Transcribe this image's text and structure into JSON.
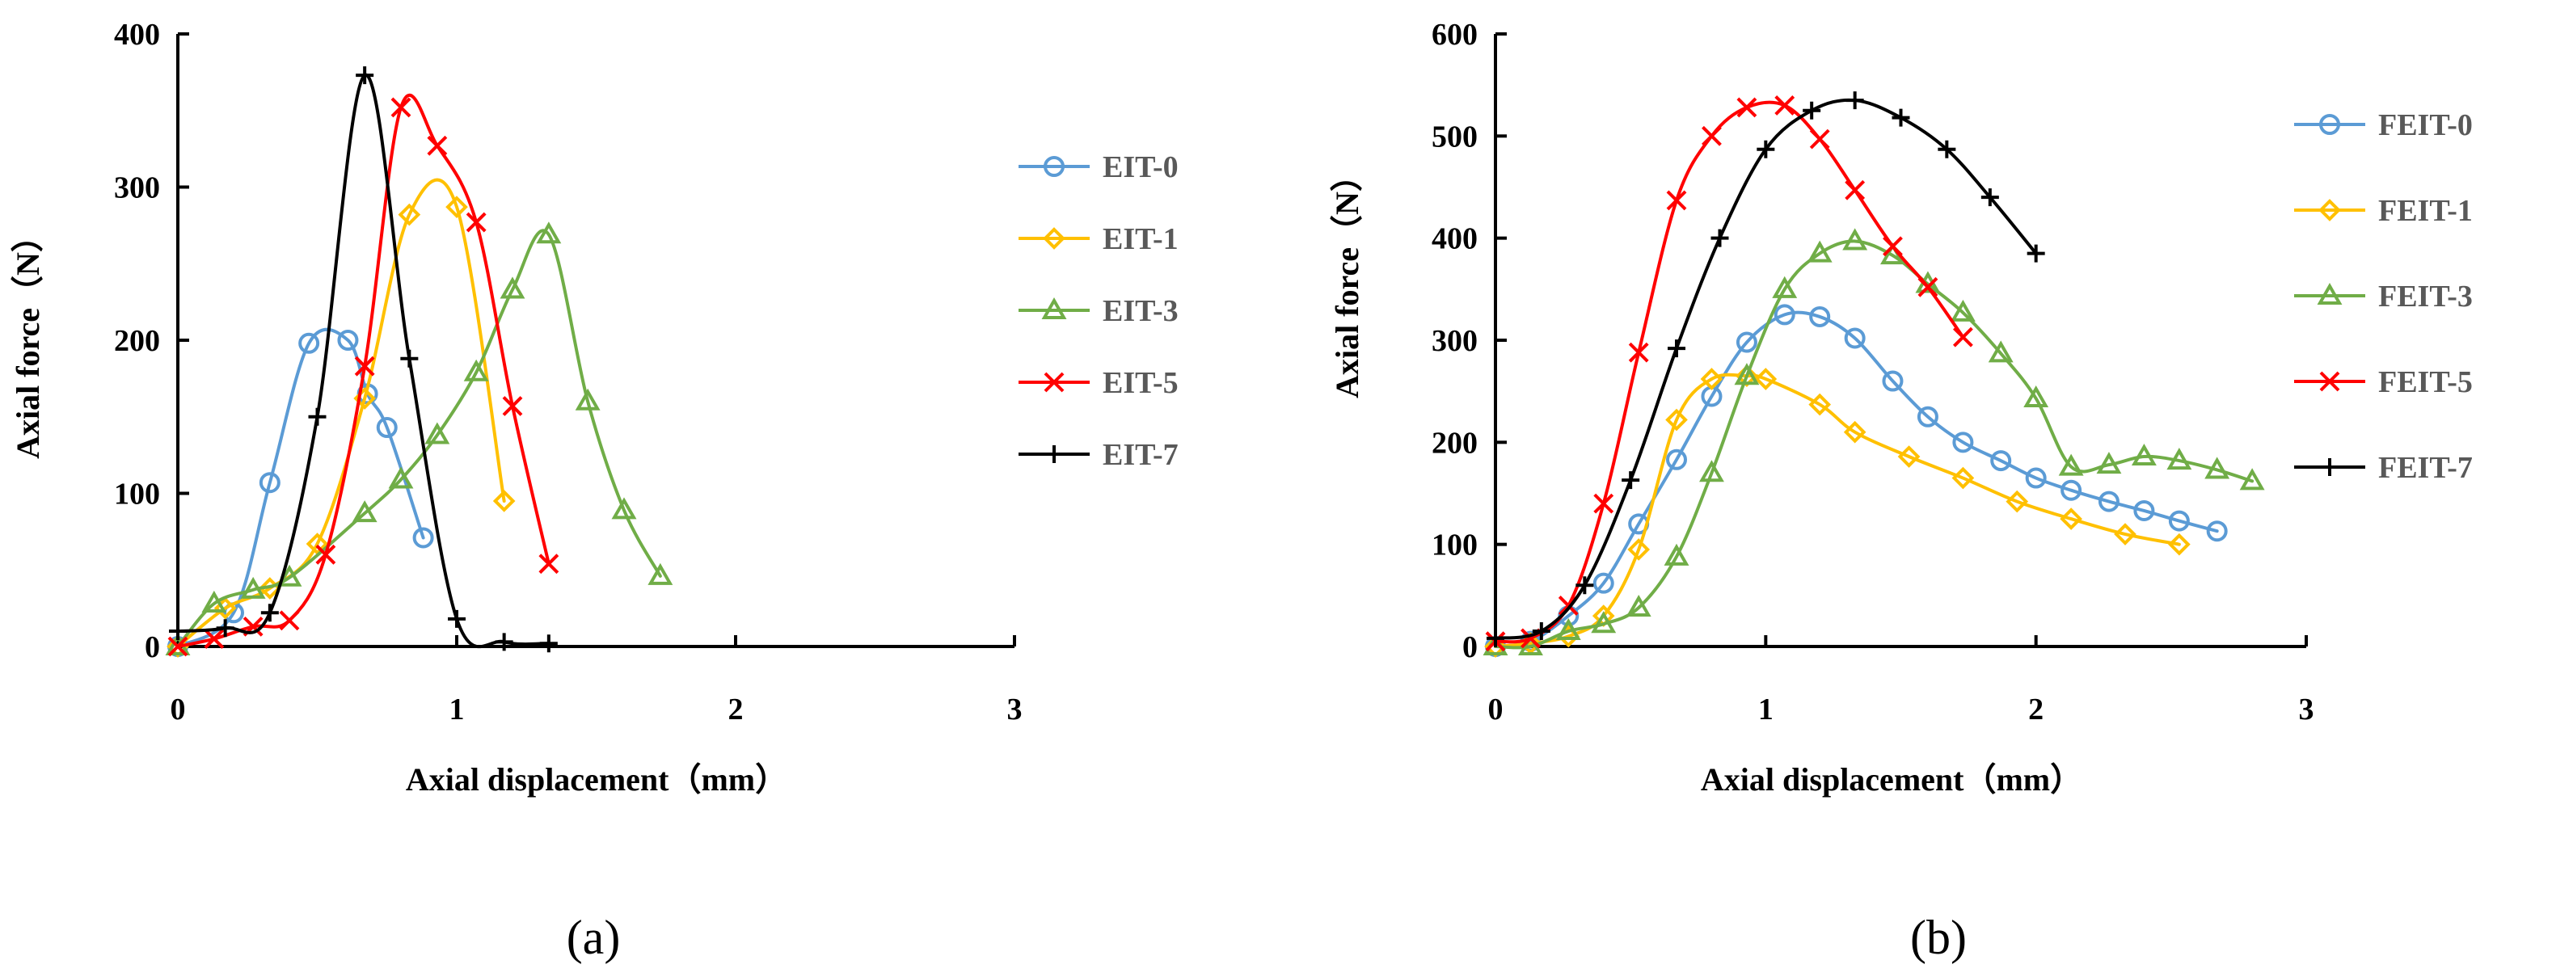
{
  "chart_data": [
    {
      "type": "line",
      "panel_label": "(a)",
      "xlabel": "Axial displacement（mm）",
      "ylabel": "Axial force（N）",
      "xlim": [
        0,
        3
      ],
      "ylim": [
        0,
        400
      ],
      "xticks": [
        0,
        1,
        2,
        3
      ],
      "yticks": [
        0,
        100,
        200,
        300,
        400
      ],
      "xtick_labels": [
        "0",
        "1",
        "2",
        "3"
      ],
      "ytick_labels": [
        "0",
        "100",
        "200",
        "300",
        "400"
      ],
      "grid": false,
      "legend_position": "right",
      "series": [
        {
          "name": "EIT-0",
          "color": "#5B9BD5",
          "marker": "circle",
          "points": [
            [
              0,
              0
            ],
            [
              0.2,
              22
            ],
            [
              0.33,
              107
            ],
            [
              0.47,
              198
            ],
            [
              0.61,
              200
            ],
            [
              0.68,
              165
            ],
            [
              0.75,
              143
            ],
            [
              0.88,
              71
            ]
          ]
        },
        {
          "name": "EIT-1",
          "color": "#FFC000",
          "marker": "diamond",
          "points": [
            [
              0,
              0
            ],
            [
              0.17,
              25
            ],
            [
              0.33,
              38
            ],
            [
              0.5,
              67
            ],
            [
              0.67,
              162
            ],
            [
              0.83,
              282
            ],
            [
              1.0,
              287
            ],
            [
              1.17,
              95
            ]
          ]
        },
        {
          "name": "EIT-3",
          "color": "#70AD47",
          "marker": "triangle",
          "points": [
            [
              0,
              0
            ],
            [
              0.13,
              28
            ],
            [
              0.27,
              37
            ],
            [
              0.4,
              45
            ],
            [
              0.67,
              87
            ],
            [
              0.8,
              109
            ],
            [
              0.93,
              138
            ],
            [
              1.07,
              179
            ],
            [
              1.2,
              233
            ],
            [
              1.33,
              269
            ],
            [
              1.47,
              160
            ],
            [
              1.6,
              89
            ],
            [
              1.73,
              46
            ]
          ]
        },
        {
          "name": "EIT-5",
          "color": "#FF0000",
          "marker": "x",
          "points": [
            [
              0,
              0
            ],
            [
              0.13,
              5
            ],
            [
              0.27,
              13
            ],
            [
              0.4,
              17
            ],
            [
              0.53,
              60
            ],
            [
              0.67,
              183
            ],
            [
              0.8,
              352
            ],
            [
              0.93,
              327
            ],
            [
              1.07,
              277
            ],
            [
              1.2,
              157
            ],
            [
              1.33,
              54
            ]
          ]
        },
        {
          "name": "EIT-7",
          "color": "#000000",
          "marker": "plus",
          "points": [
            [
              0,
              10
            ],
            [
              0.17,
              12
            ],
            [
              0.33,
              22
            ],
            [
              0.5,
              150
            ],
            [
              0.67,
              373
            ],
            [
              0.83,
              188
            ],
            [
              1.0,
              18
            ],
            [
              1.17,
              3
            ],
            [
              1.33,
              2
            ]
          ]
        }
      ]
    },
    {
      "type": "line",
      "panel_label": "(b)",
      "xlabel": "Axial displacement（mm）",
      "ylabel": "Axial force（N）",
      "xlim": [
        0,
        3
      ],
      "ylim": [
        0,
        600
      ],
      "xticks": [
        0,
        1,
        2,
        3
      ],
      "yticks": [
        0,
        100,
        200,
        300,
        400,
        500,
        600
      ],
      "xtick_labels": [
        "0",
        "1",
        "2",
        "3"
      ],
      "ytick_labels": [
        "0",
        "100",
        "200",
        "300",
        "400",
        "500",
        "600"
      ],
      "grid": false,
      "legend_position": "right",
      "series": [
        {
          "name": "FEIT-0",
          "color": "#5B9BD5",
          "marker": "circle",
          "points": [
            [
              0,
              0
            ],
            [
              0.13,
              5
            ],
            [
              0.27,
              30
            ],
            [
              0.4,
              62
            ],
            [
              0.53,
              120
            ],
            [
              0.67,
              183
            ],
            [
              0.8,
              245
            ],
            [
              0.93,
              298
            ],
            [
              1.07,
              325
            ],
            [
              1.2,
              323
            ],
            [
              1.33,
              302
            ],
            [
              1.47,
              260
            ],
            [
              1.6,
              225
            ],
            [
              1.73,
              200
            ],
            [
              1.87,
              182
            ],
            [
              2.0,
              165
            ],
            [
              2.13,
              153
            ],
            [
              2.27,
              142
            ],
            [
              2.4,
              133
            ],
            [
              2.53,
              123
            ],
            [
              2.67,
              113
            ]
          ]
        },
        {
          "name": "FEIT-1",
          "color": "#FFC000",
          "marker": "diamond",
          "points": [
            [
              0,
              0
            ],
            [
              0.13,
              3
            ],
            [
              0.27,
              10
            ],
            [
              0.4,
              30
            ],
            [
              0.53,
              95
            ],
            [
              0.67,
              222
            ],
            [
              0.8,
              262
            ],
            [
              0.93,
              265
            ],
            [
              1.0,
              262
            ],
            [
              1.2,
              237
            ],
            [
              1.33,
              210
            ],
            [
              1.53,
              186
            ],
            [
              1.73,
              165
            ],
            [
              1.93,
              142
            ],
            [
              2.13,
              125
            ],
            [
              2.33,
              110
            ],
            [
              2.53,
              100
            ]
          ]
        },
        {
          "name": "FEIT-3",
          "color": "#70AD47",
          "marker": "triangle",
          "points": [
            [
              0,
              0
            ],
            [
              0.13,
              0
            ],
            [
              0.27,
              15
            ],
            [
              0.4,
              22
            ],
            [
              0.53,
              38
            ],
            [
              0.67,
              88
            ],
            [
              0.8,
              170
            ],
            [
              0.93,
              265
            ],
            [
              1.07,
              350
            ],
            [
              1.2,
              385
            ],
            [
              1.33,
              397
            ],
            [
              1.47,
              383
            ],
            [
              1.6,
              355
            ],
            [
              1.73,
              327
            ],
            [
              1.87,
              287
            ],
            [
              2.0,
              243
            ],
            [
              2.13,
              176
            ],
            [
              2.27,
              178
            ],
            [
              2.4,
              186
            ],
            [
              2.53,
              182
            ],
            [
              2.67,
              173
            ],
            [
              2.8,
              162
            ]
          ]
        },
        {
          "name": "FEIT-5",
          "color": "#FF0000",
          "marker": "x",
          "points": [
            [
              0,
              5
            ],
            [
              0.13,
              8
            ],
            [
              0.27,
              40
            ],
            [
              0.4,
              140
            ],
            [
              0.53,
              288
            ],
            [
              0.67,
              437
            ],
            [
              0.8,
              500
            ],
            [
              0.93,
              528
            ],
            [
              1.07,
              530
            ],
            [
              1.2,
              497
            ],
            [
              1.33,
              447
            ],
            [
              1.47,
              392
            ],
            [
              1.6,
              352
            ],
            [
              1.73,
              303
            ]
          ]
        },
        {
          "name": "FEIT-7",
          "color": "#000000",
          "marker": "plus",
          "points": [
            [
              0,
              8
            ],
            [
              0.17,
              15
            ],
            [
              0.33,
              60
            ],
            [
              0.5,
              163
            ],
            [
              0.67,
              292
            ],
            [
              0.83,
              400
            ],
            [
              1.0,
              487
            ],
            [
              1.17,
              525
            ],
            [
              1.33,
              535
            ],
            [
              1.5,
              518
            ],
            [
              1.67,
              487
            ],
            [
              1.83,
              440
            ],
            [
              2.0,
              385
            ]
          ]
        }
      ]
    }
  ]
}
